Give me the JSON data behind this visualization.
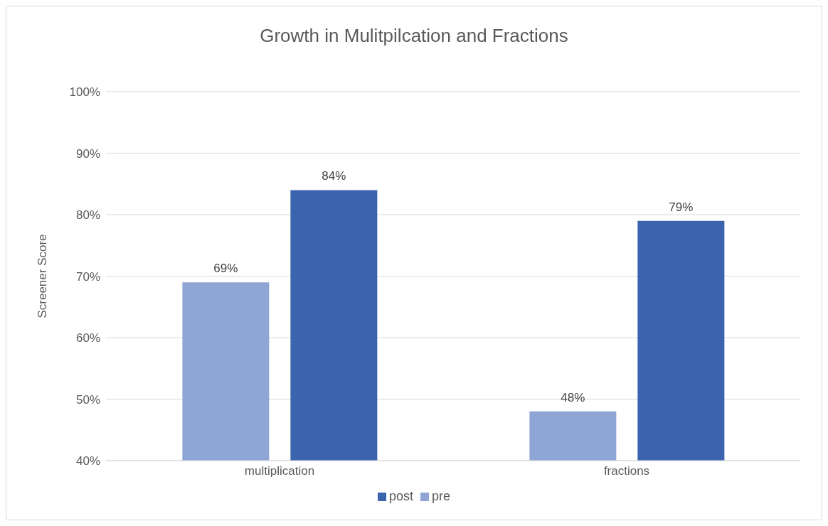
{
  "chart_data": {
    "type": "bar",
    "title": "Growth in Mulitpilcation and Fractions",
    "ylabel": "Screener Score",
    "categories": [
      "multiplication",
      "fractions"
    ],
    "series": [
      {
        "name": "pre",
        "color": "#8fa5d6",
        "values": [
          69,
          48
        ],
        "value_labels": [
          "69%",
          "48%"
        ]
      },
      {
        "name": "post",
        "color": "#3a64ad",
        "values": [
          84,
          79
        ],
        "value_labels": [
          "84%",
          "79%"
        ]
      }
    ],
    "ylim": [
      40,
      100
    ],
    "yticks": [
      {
        "value": 40,
        "label": "40%"
      },
      {
        "value": 50,
        "label": "50%"
      },
      {
        "value": 60,
        "label": "60%"
      },
      {
        "value": 70,
        "label": "70%"
      },
      {
        "value": 80,
        "label": "80%"
      },
      {
        "value": 90,
        "label": "90%"
      },
      {
        "value": 100,
        "label": "100%"
      }
    ],
    "grid": "y",
    "legend": "bottom"
  }
}
